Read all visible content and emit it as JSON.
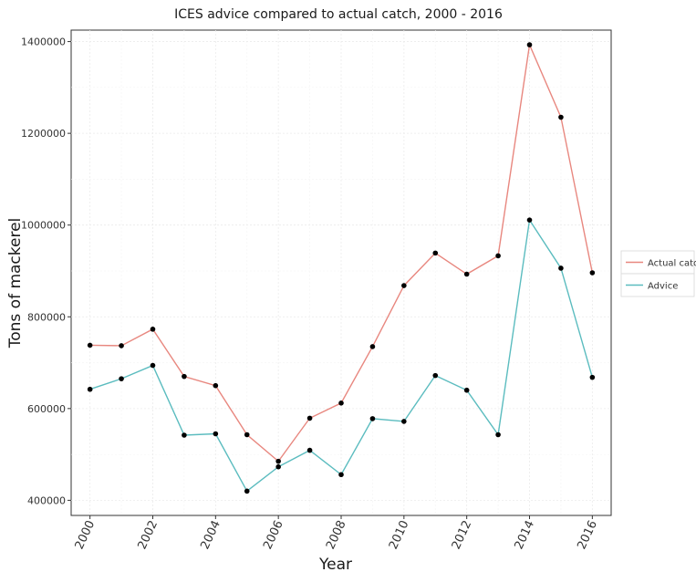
{
  "chart_data": {
    "type": "line",
    "title": "ICES advice compared to actual catch, 2000 - 2016",
    "xlabel": "Year",
    "ylabel": "Tons of mackerel",
    "x": [
      2000,
      2001,
      2002,
      2003,
      2004,
      2005,
      2006,
      2007,
      2008,
      2009,
      2010,
      2011,
      2012,
      2013,
      2014,
      2015,
      2016
    ],
    "xlim": [
      1999.4,
      2016.6
    ],
    "ylim": [
      367000,
      1425000
    ],
    "x_ticks": [
      "2000",
      "2002",
      "2004",
      "2006",
      "2008",
      "2010",
      "2012",
      "2014",
      "2016"
    ],
    "y_ticks": [
      "400000",
      "600000",
      "800000",
      "1000000",
      "1200000",
      "1400000"
    ],
    "grid": true,
    "legend_position": "right",
    "series": [
      {
        "name": "Actual catch",
        "color": "#e8877f",
        "values": [
          738000,
          737000,
          773000,
          670000,
          650000,
          543000,
          485000,
          579000,
          612000,
          735000,
          868000,
          939000,
          893000,
          933000,
          1393000,
          1235000,
          896000
        ]
      },
      {
        "name": "Advice",
        "color": "#5bbcbf",
        "values": [
          642000,
          665000,
          694000,
          542000,
          545000,
          420000,
          473000,
          509000,
          456000,
          578000,
          572000,
          672000,
          640000,
          543000,
          1011000,
          906000,
          668000
        ]
      }
    ],
    "point_color": "#000000"
  }
}
